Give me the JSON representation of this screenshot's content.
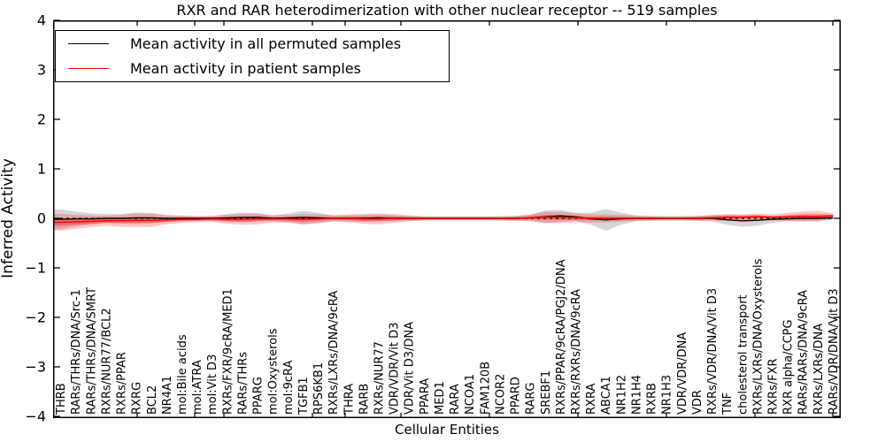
{
  "title": "RXR and RAR heterodimerization with other nuclear receptor -- 519 samples",
  "legend": {
    "items": [
      {
        "label": "Mean activity in all permuted samples",
        "color": "#000000"
      },
      {
        "label": "Mean activity in patient samples",
        "color": "#ff0000"
      }
    ]
  },
  "axes": {
    "ylabel": "Inferred Activity",
    "xlabel": "Cellular Entities",
    "ytick_values": [
      4,
      3,
      2,
      1,
      0,
      -1,
      -2,
      -3,
      -4
    ],
    "ytick_labels": [
      "4",
      "3",
      "2",
      "1",
      "0",
      "−1",
      "−2",
      "−3",
      "−4"
    ],
    "ylim": [
      -4,
      4
    ]
  },
  "chart_data": {
    "type": "area",
    "title": "RXR and RAR heterodimerization with other nuclear receptor -- 519 samples",
    "xlabel": "Cellular Entities",
    "ylabel": "Inferred Activity",
    "ylim": [
      -4,
      4
    ],
    "grid": false,
    "legend_position": "upper-left",
    "zero_line_style": "dashed-black",
    "categories": [
      "THRB",
      "RARs/THRs/DNA/Src-1",
      "RARs/THRs/DNA/SMRT",
      "RXRs/NUR77/BCL2",
      "RXRs/PPAR",
      "RXRG",
      "BCL2",
      "NR4A1",
      "mol:Bile acids",
      "mol:ATRA",
      "mol:Vit D3",
      "RXRs/FXR/9cRA/MED1",
      "RARs/THRs",
      "PPARG",
      "mol:Oxysterols",
      "mol:9cRA",
      "TGFB1",
      "RPS6KB1",
      "RXRs/LXRs/DNA/9cRA",
      "THRA",
      "RARB",
      "RXRs/NUR77",
      "VDR/VDR/Vit D3",
      "VDR/Vit D3/DNA",
      "PPARA",
      "MED1",
      "RARA",
      "NCOA1",
      "FAM120B",
      "NCOR2",
      "PPARD",
      "RARG",
      "SREBF1",
      "RXRs/PPAR/9cRA/PGJ2/DNA",
      "RXRs/RXRs/DNA/9cRA",
      "RXRA",
      "ABCA1",
      "NR1H2",
      "NR1H4",
      "RXRB",
      "NR1H3",
      "VDR/VDR/DNA",
      "VDR",
      "RXRs/VDR/DNA/Vit D3",
      "TNF",
      "cholesterol transport",
      "RXRs/LXRs/DNA/Oxysterols",
      "RXRs/FXR",
      "RXR alpha/CCPG",
      "RARs/RARs/DNA/9cRA",
      "RXRs/LXRs/DNA",
      "RARs/VDR/DNA/Vit D3"
    ],
    "series": [
      {
        "name": "Mean activity in all permuted samples",
        "color": "#000000",
        "band_fill": "rgba(0,0,0,0.16)",
        "values": [
          -0.02,
          -0.01,
          -0.01,
          0,
          0,
          0.01,
          0.01,
          0,
          0,
          0,
          0,
          0.01,
          0.02,
          0.02,
          0,
          0.01,
          0.02,
          0.01,
          0,
          0,
          0,
          0.01,
          0,
          0,
          0,
          0,
          0,
          0,
          0,
          0,
          0,
          0.01,
          0.03,
          0.05,
          0.03,
          -0.01,
          -0.03,
          -0.01,
          0,
          0,
          0,
          0,
          0,
          0,
          -0.03,
          -0.05,
          -0.04,
          -0.02,
          -0.01,
          0,
          0,
          0.01
        ],
        "spread": [
          0.2,
          0.15,
          0.11,
          0.09,
          0.09,
          0.11,
          0.1,
          0.07,
          0.06,
          0.05,
          0.05,
          0.08,
          0.1,
          0.08,
          0.06,
          0.09,
          0.13,
          0.1,
          0.06,
          0.06,
          0.07,
          0.07,
          0.06,
          0.05,
          0.045,
          0.045,
          0.045,
          0.045,
          0.045,
          0.045,
          0.05,
          0.06,
          0.13,
          0.12,
          0.08,
          0.12,
          0.22,
          0.12,
          0.06,
          0.05,
          0.045,
          0.045,
          0.05,
          0.06,
          0.1,
          0.12,
          0.11,
          0.07,
          0.05,
          0.06,
          0.05,
          0.04
        ]
      },
      {
        "name": "Mean activity in patient samples",
        "color": "#ff0000",
        "band_fill": "rgba(255,0,0,0.22)",
        "band_fill_inner": "rgba(255,0,0,0.33)",
        "values": [
          -0.08,
          -0.07,
          -0.06,
          -0.05,
          -0.05,
          -0.04,
          -0.04,
          -0.03,
          -0.02,
          -0.02,
          -0.01,
          -0.02,
          -0.02,
          -0.01,
          -0.01,
          -0.01,
          -0.02,
          -0.01,
          0,
          0,
          -0.01,
          -0.01,
          0,
          0,
          0,
          0,
          0,
          0,
          0,
          0,
          0,
          0.01,
          0.02,
          0.02,
          0.01,
          0,
          0,
          0,
          0,
          0,
          0,
          0,
          0,
          0.01,
          0.02,
          0.02,
          0.03,
          0.02,
          0.03,
          0.04,
          0.04,
          0.05
        ],
        "spread": [
          0.17,
          0.14,
          0.12,
          0.1,
          0.12,
          0.14,
          0.13,
          0.09,
          0.07,
          0.06,
          0.06,
          0.09,
          0.11,
          0.11,
          0.07,
          0.08,
          0.11,
          0.09,
          0.06,
          0.08,
          0.1,
          0.11,
          0.09,
          0.06,
          0.04,
          0.035,
          0.035,
          0.035,
          0.035,
          0.04,
          0.05,
          0.07,
          0.11,
          0.11,
          0.09,
          0.08,
          0.08,
          0.07,
          0.05,
          0.045,
          0.04,
          0.04,
          0.05,
          0.06,
          0.07,
          0.06,
          0.07,
          0.06,
          0.08,
          0.1,
          0.11,
          0.05
        ]
      }
    ]
  }
}
